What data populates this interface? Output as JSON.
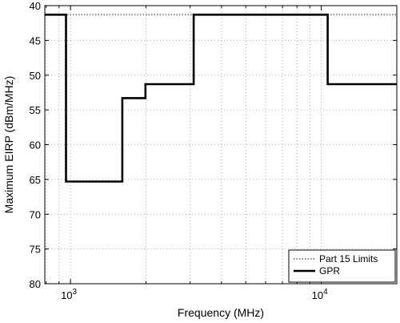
{
  "chart_data": {
    "type": "line",
    "title": "",
    "xlabel": "Frequency  (MHz)",
    "ylabel": "Maximum EIRP (dBm/MHz)",
    "xscale": "log",
    "xlim": [
      790,
      20000
    ],
    "ylim": [
      40,
      80
    ],
    "y_inverted": true,
    "grid": true,
    "legend_position": "bottom-right",
    "xticks": [
      {
        "value": 1000,
        "base": "10",
        "exp": "3"
      },
      {
        "value": 10000,
        "base": "10",
        "exp": "4"
      }
    ],
    "yticks": [
      40,
      45,
      50,
      55,
      60,
      65,
      70,
      75,
      80
    ],
    "series": [
      {
        "name": "Part 15 Limits",
        "style": "dotted",
        "color": "#888888",
        "x": [
          790,
          20000
        ],
        "y": [
          41.3,
          41.3
        ]
      },
      {
        "name": "GPR",
        "style": "solid",
        "color": "#000000",
        "x": [
          790,
          960,
          960,
          1610,
          1610,
          1990,
          1990,
          3100,
          3100,
          10600,
          10600,
          20000
        ],
        "y": [
          41.3,
          41.3,
          65.3,
          65.3,
          53.3,
          53.3,
          51.3,
          51.3,
          41.3,
          41.3,
          51.3,
          51.3
        ]
      }
    ]
  }
}
